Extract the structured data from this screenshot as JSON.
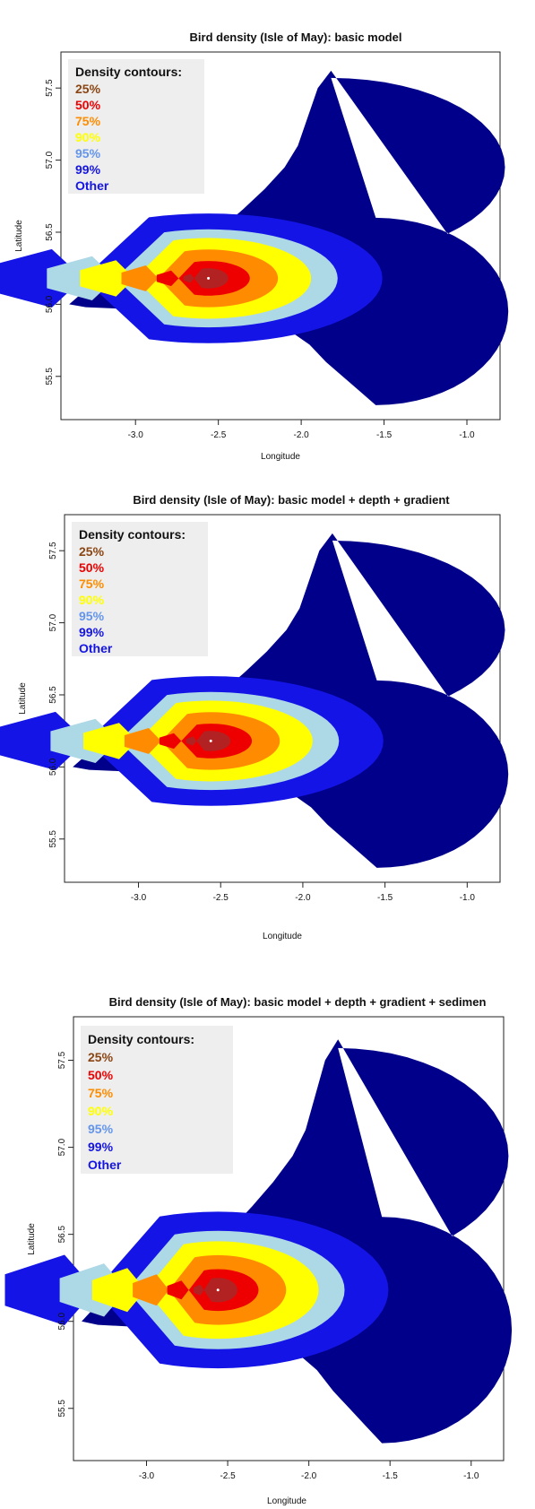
{
  "colors": {
    "other": "#00008b",
    "c99": "#1414e6",
    "c95": "#add8e6",
    "c90": "#ffff00",
    "c75": "#ff8c00",
    "c50": "#ee0000",
    "c25": "#b22222",
    "legend_bg": "#eeeeee",
    "legend_title": "#111111",
    "legend_25": "#8b4513",
    "legend_50": "#ee0000",
    "legend_75": "#ff8c00",
    "legend_90": "#ffff00",
    "legend_95": "#6495ed",
    "legend_99": "#1414e6",
    "legend_other": "#1414e6"
  },
  "chart_data": [
    {
      "type": "heatmap",
      "title": "Bird density (Isle of May): basic model",
      "xlabel": "Longitude",
      "ylabel": "Latitude",
      "xlim": [
        -3.45,
        -0.8
      ],
      "ylim": [
        55.2,
        57.75
      ],
      "x_ticks": [
        "-3.0",
        "-2.5",
        "-2.0",
        "-1.5",
        "-1.0"
      ],
      "y_ticks": [
        "55.5",
        "56.0",
        "56.5",
        "57.0",
        "57.5"
      ],
      "legend": {
        "title": "Density contours:",
        "entries": [
          "25%",
          "50%",
          "75%",
          "90%",
          "95%",
          "99%",
          "Other"
        ],
        "placement": "top-left"
      },
      "colony": [
        -2.56,
        56.18
      ]
    },
    {
      "type": "heatmap",
      "title": "Bird density (Isle of May): basic model + depth + gradient",
      "xlabel": "Longitude",
      "ylabel": "Latitude",
      "xlim": [
        -3.45,
        -0.8
      ],
      "ylim": [
        55.2,
        57.75
      ],
      "x_ticks": [
        "-3.0",
        "-2.5",
        "-2.0",
        "-1.5",
        "-1.0"
      ],
      "y_ticks": [
        "55.5",
        "56.0",
        "56.5",
        "57.0",
        "57.5"
      ],
      "legend": {
        "title": "Density contours:",
        "entries": [
          "25%",
          "50%",
          "75%",
          "90%",
          "95%",
          "99%",
          "Other"
        ],
        "placement": "top-left"
      },
      "colony": [
        -2.56,
        56.18
      ]
    },
    {
      "type": "heatmap",
      "title": "Bird density (Isle of May): basic model + depth + gradient + sedimen",
      "xlabel": "Longitude",
      "ylabel": "Latitude",
      "xlim": [
        -3.45,
        -0.8
      ],
      "ylim": [
        55.2,
        57.75
      ],
      "x_ticks": [
        "-3.0",
        "-2.5",
        "-2.0",
        "-1.5",
        "-1.0"
      ],
      "y_ticks": [
        "55.5",
        "56.0",
        "56.5",
        "57.0",
        "57.5"
      ],
      "legend": {
        "title": "Density contours:",
        "entries": [
          "25%",
          "50%",
          "75%",
          "90%",
          "95%",
          "99%",
          "Other"
        ],
        "placement": "top-left"
      },
      "colony": [
        -2.56,
        56.18
      ]
    }
  ]
}
